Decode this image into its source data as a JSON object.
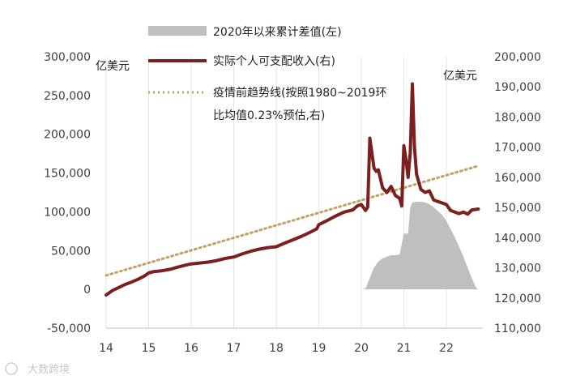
{
  "chart_data": {
    "type": "line",
    "x_ticks": [
      "14",
      "15",
      "16",
      "17",
      "18",
      "19",
      "20",
      "21",
      "22"
    ],
    "left_axis": {
      "unit": "亿美元",
      "ylim": [
        -50000,
        300000
      ],
      "ticks": [
        -50000,
        0,
        50000,
        100000,
        150000,
        200000,
        250000,
        300000
      ],
      "tick_labels": [
        "-50,000",
        "0",
        "50,000",
        "100,000",
        "150,000",
        "200,000",
        "250,000",
        "300,000"
      ]
    },
    "right_axis": {
      "unit": "亿美元",
      "ylim": [
        110000,
        200000
      ],
      "ticks": [
        110000,
        120000,
        130000,
        140000,
        150000,
        160000,
        170000,
        180000,
        190000,
        200000
      ],
      "tick_labels": [
        "110,000",
        "120,000",
        "130,000",
        "140,000",
        "150,000",
        "160,000",
        "170,000",
        "180,000",
        "190,000",
        "200,000"
      ]
    },
    "legend_position": "top-center",
    "grid": "vertical",
    "series": [
      {
        "name": "2020年以来累计差值(左)",
        "type": "area",
        "axis": "left",
        "color": "#bfbfbf",
        "x": [
          2020.0,
          2020.1,
          2020.2,
          2020.3,
          2020.4,
          2020.5,
          2020.6,
          2020.7,
          2020.8,
          2020.9,
          2021.0,
          2021.05,
          2021.1,
          2021.15,
          2021.2,
          2021.3,
          2021.4,
          2021.5,
          2021.6,
          2021.7,
          2021.8,
          2021.9,
          2022.0,
          2022.1,
          2022.2,
          2022.3,
          2022.4,
          2022.5,
          2022.6,
          2022.7,
          2022.75
        ],
        "values": [
          0,
          1000,
          15000,
          28000,
          36000,
          40000,
          42000,
          44000,
          44000,
          45000,
          72000,
          72000,
          72000,
          106000,
          112000,
          113000,
          113000,
          112000,
          110000,
          106000,
          101000,
          96000,
          88000,
          78000,
          67000,
          55000,
          42000,
          28000,
          14000,
          2000,
          0
        ]
      },
      {
        "name": "实际个人可支配收入(右)",
        "type": "line",
        "axis": "right",
        "color": "#7b1f1f",
        "x": [
          2014.0,
          2014.15,
          2014.3,
          2014.45,
          2014.6,
          2014.75,
          2014.9,
          2015.0,
          2015.1,
          2015.3,
          2015.5,
          2015.7,
          2015.9,
          2016.0,
          2016.2,
          2016.4,
          2016.6,
          2016.8,
          2017.0,
          2017.2,
          2017.4,
          2017.6,
          2017.8,
          2018.0,
          2018.2,
          2018.4,
          2018.6,
          2018.8,
          2018.95,
          2019.0,
          2019.2,
          2019.4,
          2019.6,
          2019.8,
          2019.9,
          2020.0,
          2020.05,
          2020.1,
          2020.15,
          2020.2,
          2020.25,
          2020.3,
          2020.35,
          2020.4,
          2020.5,
          2020.6,
          2020.7,
          2020.8,
          2020.9,
          2020.95,
          2021.0,
          2021.05,
          2021.1,
          2021.15,
          2021.2,
          2021.25,
          2021.3,
          2021.4,
          2021.5,
          2021.6,
          2021.7,
          2021.8,
          2021.9,
          2022.0,
          2022.1,
          2022.2,
          2022.3,
          2022.4,
          2022.5,
          2022.6,
          2022.75
        ],
        "values": [
          121000,
          122500,
          123500,
          124500,
          125300,
          126200,
          127300,
          128300,
          128700,
          129000,
          129500,
          130300,
          131000,
          131300,
          131600,
          131900,
          132400,
          133100,
          133600,
          134600,
          135500,
          136200,
          136700,
          137000,
          138200,
          139300,
          140500,
          141800,
          142900,
          144300,
          145700,
          147200,
          148500,
          149200,
          150500,
          151000,
          150000,
          149000,
          150200,
          173000,
          168000,
          163000,
          162000,
          162500,
          156500,
          155000,
          157000,
          154000,
          153000,
          150500,
          170500,
          166000,
          160000,
          168000,
          191000,
          170000,
          161000,
          156000,
          155000,
          155500,
          152500,
          152000,
          151500,
          151000,
          149000,
          148500,
          148000,
          148500,
          147800,
          149200,
          149500
        ]
      },
      {
        "name": "疫情前趋势线(按照1980~2019环比均值0.23%预估,右)",
        "type": "line",
        "axis": "right",
        "color": "#c4a06a",
        "style": "dotted",
        "x": [
          2014.0,
          2022.75
        ],
        "values": [
          127500,
          163800
        ]
      }
    ],
    "legend_entries": [
      "2020年以来累计差值(左)",
      "实际个人可支配收入(右)",
      "疫情前趋势线(按照1980~2019环",
      "比均值0.23%预估,右)"
    ]
  },
  "watermark": "大数跨境"
}
